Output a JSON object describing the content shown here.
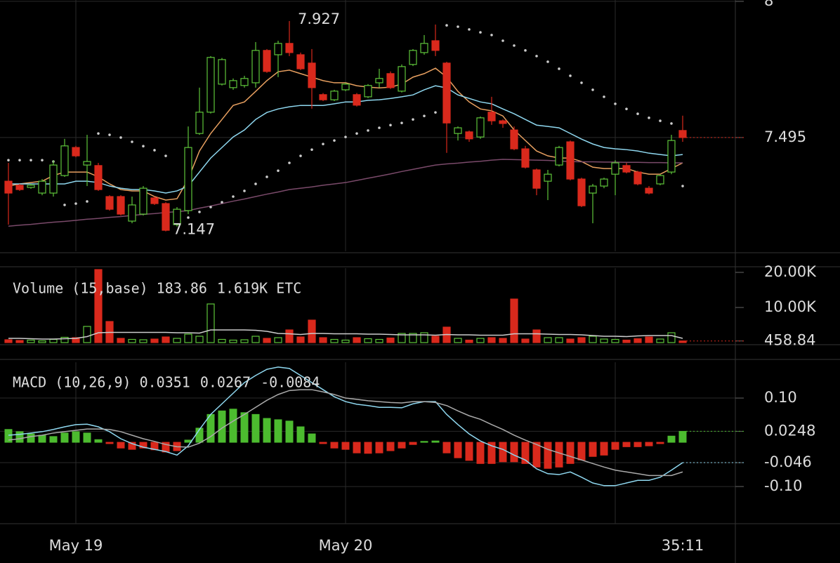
{
  "chart_data": [
    {
      "type": "candlestick",
      "categories": [
        null,
        null,
        null,
        null,
        null,
        null,
        "May 19",
        null,
        null,
        null,
        null,
        null,
        null,
        null,
        null,
        null,
        null,
        null,
        null,
        null,
        null,
        null,
        null,
        null,
        null,
        null,
        null,
        null,
        null,
        null,
        "May 20",
        null,
        null,
        null,
        null,
        null,
        null,
        null,
        null,
        null,
        null,
        null,
        null,
        null,
        null,
        null,
        null,
        null,
        null,
        null,
        null,
        null,
        null,
        null,
        null,
        null,
        null,
        null,
        null,
        null,
        "35:11"
      ],
      "open": [
        7.333,
        7.318,
        7.31,
        7.289,
        7.289,
        7.354,
        7.458,
        7.393,
        7.391,
        7.276,
        7.276,
        7.185,
        7.211,
        7.271,
        7.25,
        7.172,
        7.224,
        7.51,
        7.589,
        7.693,
        7.68,
        7.688,
        7.698,
        7.818,
        7.802,
        7.844,
        7.802,
        7.771,
        7.654,
        7.635,
        7.672,
        7.654,
        7.646,
        7.698,
        7.732,
        7.667,
        7.766,
        7.81,
        7.854,
        7.771,
        7.51,
        7.516,
        7.497,
        7.589,
        7.557,
        7.523,
        7.453,
        7.375,
        7.333,
        7.393,
        7.479,
        7.341,
        7.289,
        7.315,
        7.359,
        7.391,
        7.367,
        7.307,
        7.323,
        7.367,
        7.521
      ],
      "high": [
        7.401,
        7.323,
        7.323,
        7.341,
        7.411,
        7.49,
        7.464,
        7.505,
        7.401,
        7.281,
        7.281,
        7.276,
        7.315,
        7.276,
        7.255,
        7.237,
        7.536,
        7.68,
        7.797,
        7.79,
        7.714,
        7.724,
        7.849,
        7.823,
        7.854,
        7.927,
        7.81,
        7.823,
        7.66,
        7.672,
        7.698,
        7.66,
        7.693,
        7.75,
        7.74,
        7.766,
        7.823,
        7.875,
        7.914,
        7.776,
        7.536,
        7.521,
        7.573,
        7.646,
        7.562,
        7.536,
        7.464,
        7.38,
        7.375,
        7.464,
        7.484,
        7.346,
        7.323,
        7.346,
        7.411,
        7.401,
        7.372,
        7.315,
        7.359,
        7.505,
        7.576
      ],
      "low": [
        7.172,
        7.297,
        7.305,
        7.281,
        7.276,
        7.349,
        7.422,
        7.315,
        7.297,
        7.224,
        7.206,
        7.177,
        7.206,
        7.245,
        7.147,
        7.165,
        7.211,
        7.505,
        7.584,
        7.688,
        7.672,
        7.68,
        7.68,
        7.735,
        7.719,
        7.797,
        7.745,
        7.602,
        7.63,
        7.63,
        7.667,
        7.61,
        7.641,
        7.68,
        7.675,
        7.662,
        7.76,
        7.802,
        7.797,
        7.438,
        7.484,
        7.479,
        7.49,
        7.542,
        7.531,
        7.448,
        7.38,
        7.281,
        7.263,
        7.388,
        7.336,
        7.237,
        7.177,
        7.307,
        7.281,
        7.362,
        7.318,
        7.284,
        7.318,
        7.359,
        7.479
      ],
      "close": [
        7.289,
        7.302,
        7.318,
        7.333,
        7.393,
        7.464,
        7.427,
        7.406,
        7.302,
        7.229,
        7.211,
        7.245,
        7.307,
        7.25,
        7.151,
        7.229,
        7.458,
        7.589,
        7.792,
        7.784,
        7.706,
        7.714,
        7.818,
        7.74,
        7.844,
        7.81,
        7.75,
        7.68,
        7.635,
        7.667,
        7.693,
        7.615,
        7.688,
        7.714,
        7.68,
        7.758,
        7.818,
        7.844,
        7.818,
        7.549,
        7.531,
        7.49,
        7.568,
        7.557,
        7.547,
        7.453,
        7.385,
        7.307,
        7.359,
        7.458,
        7.341,
        7.242,
        7.315,
        7.341,
        7.401,
        7.367,
        7.323,
        7.289,
        7.354,
        7.484,
        7.495
      ],
      "up_color": "#5ec43a",
      "down_color": "#d9291c",
      "series": [
        {
          "color": "#e8a060",
          "values": [
            7.315,
            7.323,
            7.328,
            7.333,
            7.354,
            7.367,
            7.367,
            7.367,
            7.349,
            7.323,
            7.302,
            7.297,
            7.297,
            7.276,
            7.263,
            7.268,
            7.341,
            7.445,
            7.51,
            7.562,
            7.614,
            7.627,
            7.666,
            7.706,
            7.739,
            7.745,
            7.732,
            7.719,
            7.706,
            7.698,
            7.698,
            7.687,
            7.682,
            7.679,
            7.682,
            7.693,
            7.719,
            7.732,
            7.752,
            7.719,
            7.666,
            7.627,
            7.601,
            7.594,
            7.575,
            7.523,
            7.484,
            7.445,
            7.427,
            7.419,
            7.419,
            7.406,
            7.385,
            7.38,
            7.38,
            7.38,
            7.367,
            7.359,
            7.359,
            7.38,
            7.401
          ]
        },
        {
          "color": "#8fd8f0",
          "values": [
            7.323,
            7.323,
            7.323,
            7.323,
            7.323,
            7.323,
            7.333,
            7.333,
            7.328,
            7.315,
            7.307,
            7.302,
            7.302,
            7.297,
            7.289,
            7.297,
            7.315,
            7.367,
            7.419,
            7.458,
            7.497,
            7.523,
            7.562,
            7.588,
            7.601,
            7.609,
            7.614,
            7.614,
            7.614,
            7.62,
            7.627,
            7.627,
            7.633,
            7.635,
            7.64,
            7.646,
            7.653,
            7.672,
            7.687,
            7.679,
            7.653,
            7.64,
            7.627,
            7.62,
            7.601,
            7.583,
            7.562,
            7.541,
            7.536,
            7.531,
            7.51,
            7.489,
            7.471,
            7.458,
            7.453,
            7.45,
            7.445,
            7.437,
            7.432,
            7.427,
            7.432
          ]
        },
        {
          "color": "#7a4a6a",
          "values": [
            7.166,
            7.17,
            7.173,
            7.177,
            7.181,
            7.184,
            7.188,
            7.192,
            7.195,
            7.199,
            7.202,
            7.206,
            7.21,
            7.213,
            7.217,
            7.22,
            7.224,
            7.233,
            7.241,
            7.25,
            7.259,
            7.267,
            7.276,
            7.285,
            7.293,
            7.302,
            7.307,
            7.312,
            7.318,
            7.323,
            7.328,
            7.336,
            7.344,
            7.352,
            7.36,
            7.369,
            7.377,
            7.385,
            7.393,
            7.397,
            7.4,
            7.404,
            7.407,
            7.411,
            7.414,
            7.413,
            7.412,
            7.411,
            7.41,
            7.408,
            7.406,
            7.405,
            7.405,
            7.404,
            7.404,
            7.403,
            7.403,
            7.402,
            7.402,
            7.401,
            7.401
          ]
        }
      ],
      "sar": {
        "color": "#cccccc",
        "values": [
          7.411,
          7.411,
          7.411,
          7.411,
          7.406,
          7.245,
          7.25,
          7.258,
          7.51,
          7.505,
          7.495,
          7.479,
          7.463,
          7.448,
          7.427,
          7.177,
          7.198,
          7.219,
          7.237,
          7.255,
          7.276,
          7.297,
          7.323,
          7.349,
          7.372,
          7.401,
          7.427,
          7.45,
          7.471,
          7.484,
          7.497,
          7.51,
          7.521,
          7.531,
          7.541,
          7.549,
          7.562,
          7.575,
          7.588,
          7.911,
          7.906,
          7.896,
          7.885,
          7.875,
          7.854,
          7.836,
          7.818,
          7.797,
          7.776,
          7.75,
          7.724,
          7.698,
          7.672,
          7.646,
          7.62,
          7.601,
          7.583,
          7.568,
          7.557,
          7.547,
          7.315
        ]
      },
      "ylim": [
        7.073,
        8.005
      ],
      "yticks": [
        8,
        7.495
      ],
      "grid": true
    },
    {
      "type": "volume",
      "legend": {
        "label": "Volume (15,base)",
        "items": [
          {
            "text": 183.86,
            "color": "#d9291c"
          },
          {
            "text": "1.619K ETC",
            "color": "#cccccc"
          }
        ]
      },
      "values": [
        800,
        600,
        700,
        500,
        900,
        1500,
        1400,
        4600,
        20800,
        6000,
        1200,
        900,
        800,
        1000,
        1600,
        1200,
        2400,
        1800,
        11000,
        900,
        700,
        800,
        1800,
        1200,
        1400,
        3600,
        1600,
        6400,
        1400,
        900,
        700,
        1400,
        1100,
        900,
        1300,
        2600,
        2600,
        2800,
        1800,
        4400,
        1200,
        700,
        1200,
        1400,
        1200,
        12400,
        1000,
        3600,
        1400,
        1400,
        1000,
        1400,
        1800,
        1000,
        900,
        700,
        1100,
        1600,
        1000,
        2800,
        458.84
      ],
      "average": {
        "color": "#cccccc",
        "values": [
          1200,
          1200,
          1100,
          1000,
          1000,
          1100,
          1200,
          1700,
          2800,
          2900,
          2900,
          2900,
          2900,
          2900,
          2900,
          2800,
          2800,
          2700,
          3600,
          3600,
          3600,
          3600,
          3500,
          3200,
          2600,
          2500,
          2300,
          2600,
          2600,
          2500,
          2500,
          2500,
          2400,
          2400,
          2300,
          2200,
          2200,
          2200,
          2100,
          2300,
          2200,
          2200,
          2100,
          2100,
          2100,
          2500,
          2500,
          2500,
          2400,
          2300,
          2300,
          2200,
          2000,
          1800,
          1800,
          1700,
          1900,
          2000,
          2000,
          2000,
          1200
        ]
      },
      "ylim": [
        0,
        21200
      ],
      "yticks": [
        {
          "value": 20000,
          "label": "20.00K"
        },
        {
          "value": 10000,
          "label": "10.00K"
        },
        458.84
      ],
      "grid": false
    },
    {
      "type": "macd",
      "legend": {
        "label": "MACD (10,26,9)",
        "items": [
          {
            "text": 0.0351,
            "color": "#5ec43a"
          },
          {
            "text": 0.0267,
            "color": "#8fd8f0"
          },
          {
            "text": -0.0084,
            "color": "#dddddd"
          }
        ]
      },
      "histogram": {
        "up_color": "#4cbb2f",
        "down_color": "#d9291c",
        "values": [
          0.029,
          0.024,
          0.019,
          0.016,
          0.013,
          0.021,
          0.024,
          0.021,
          0.006,
          -0.003,
          -0.013,
          -0.016,
          -0.013,
          -0.017,
          -0.022,
          -0.019,
          0.005,
          0.032,
          0.063,
          0.071,
          0.075,
          0.067,
          0.063,
          0.054,
          0.051,
          0.048,
          0.035,
          0.019,
          -0.003,
          -0.013,
          -0.016,
          -0.024,
          -0.025,
          -0.024,
          -0.019,
          -0.013,
          -0.005,
          0.002,
          0.003,
          -0.024,
          -0.035,
          -0.041,
          -0.048,
          -0.048,
          -0.044,
          -0.044,
          -0.048,
          -0.056,
          -0.059,
          -0.056,
          -0.048,
          -0.04,
          -0.032,
          -0.029,
          -0.016,
          -0.01,
          -0.01,
          -0.008,
          -0.003,
          0.014,
          0.0248
        ]
      },
      "series": [
        {
          "color": "#8fd8f0",
          "values": [
            0.016,
            0.018,
            0.021,
            0.024,
            0.029,
            0.035,
            0.04,
            0.041,
            0.035,
            0.024,
            0.008,
            -0.003,
            -0.011,
            -0.016,
            -0.021,
            -0.029,
            -0.008,
            0.029,
            0.063,
            0.087,
            0.111,
            0.135,
            0.151,
            0.165,
            0.17,
            0.167,
            0.151,
            0.135,
            0.119,
            0.103,
            0.092,
            0.086,
            0.083,
            0.079,
            0.079,
            0.078,
            0.087,
            0.092,
            0.092,
            0.063,
            0.04,
            0.019,
            0.003,
            -0.008,
            -0.016,
            -0.029,
            -0.04,
            -0.06,
            -0.071,
            -0.073,
            -0.067,
            -0.079,
            -0.092,
            -0.098,
            -0.098,
            -0.092,
            -0.086,
            -0.086,
            -0.079,
            -0.063,
            -0.046
          ]
        },
        {
          "color": "#aaaaaa",
          "values": [
            0.005,
            0.008,
            0.013,
            0.016,
            0.021,
            0.024,
            0.027,
            0.03,
            0.03,
            0.029,
            0.024,
            0.016,
            0.008,
            0.002,
            -0.005,
            -0.01,
            -0.011,
            -0.002,
            0.013,
            0.032,
            0.048,
            0.063,
            0.079,
            0.095,
            0.108,
            0.117,
            0.119,
            0.119,
            0.114,
            0.108,
            0.1,
            0.097,
            0.094,
            0.092,
            0.09,
            0.089,
            0.092,
            0.092,
            0.09,
            0.083,
            0.071,
            0.06,
            0.052,
            0.04,
            0.029,
            0.016,
            0.005,
            -0.005,
            -0.016,
            -0.024,
            -0.032,
            -0.04,
            -0.048,
            -0.056,
            -0.063,
            -0.067,
            -0.071,
            -0.075,
            -0.075,
            -0.075,
            -0.067
          ]
        }
      ],
      "ylim": [
        -0.184,
        0.181
      ],
      "yticks": [
        {
          "value": 0.1,
          "label": "0.10"
        },
        0.0248,
        -0.046,
        {
          "value": -0.1,
          "label": "-0.10"
        }
      ],
      "grid": true
    }
  ]
}
